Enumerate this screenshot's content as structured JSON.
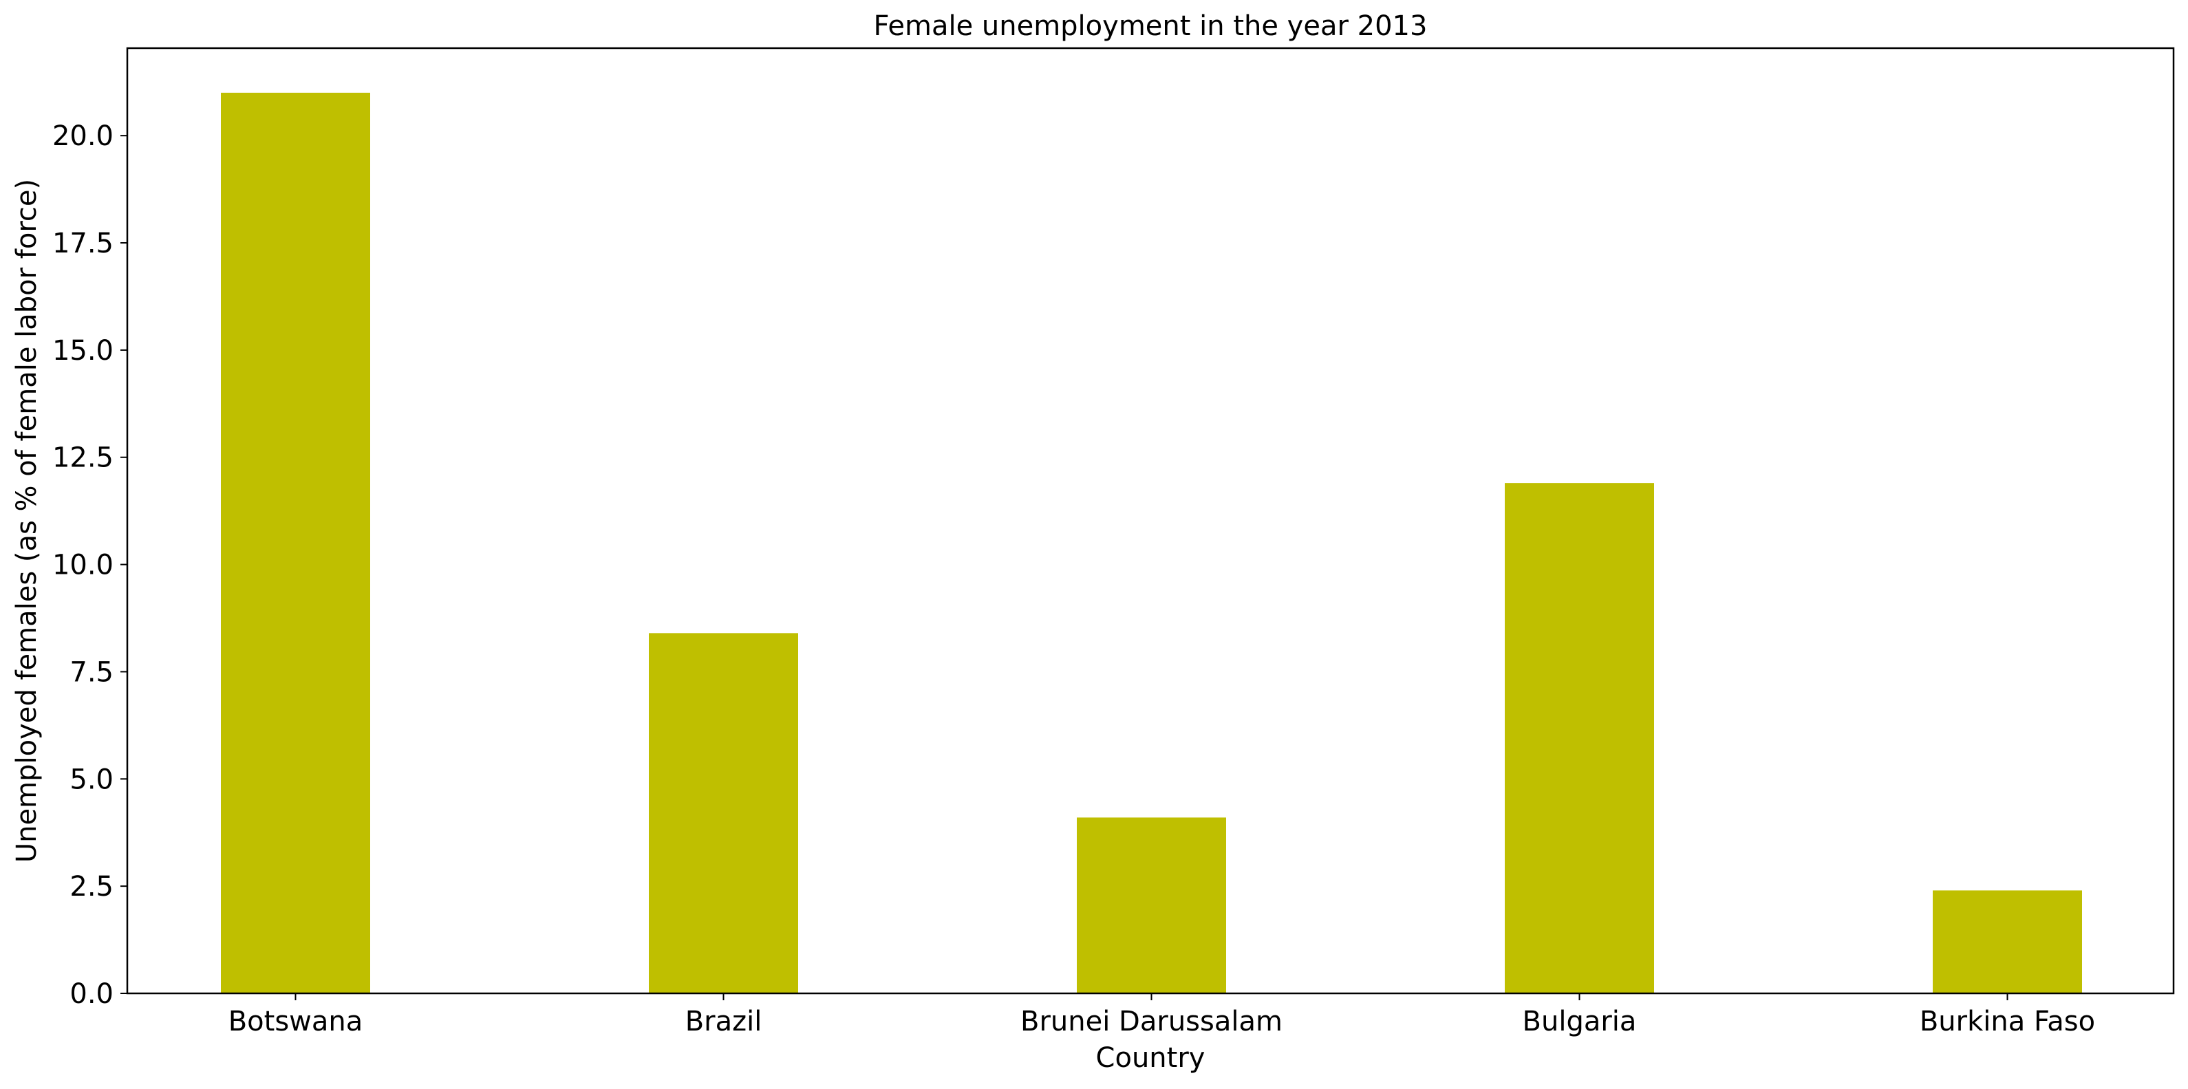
{
  "chart_data": {
    "type": "bar",
    "title": "Female unemployment in the year 2013",
    "xlabel": "Country",
    "ylabel": "Unemployed females (as % of female labor force)",
    "categories": [
      "Botswana",
      "Brazil",
      "Brunei Darussalam",
      "Bulgaria",
      "Burkina Faso"
    ],
    "values": [
      21.0,
      8.4,
      4.1,
      11.9,
      2.4
    ],
    "ylim": [
      0,
      22.04
    ],
    "yticks": [
      "0.0",
      "2.5",
      "5.0",
      "7.5",
      "10.0",
      "12.5",
      "15.0",
      "17.5",
      "20.0"
    ],
    "bar_color": "#bfbf00",
    "grid": false,
    "legend": "none"
  }
}
